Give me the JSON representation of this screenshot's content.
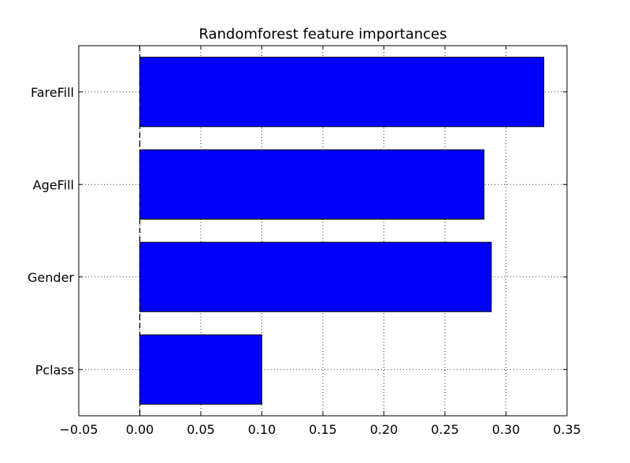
{
  "chart_data": {
    "type": "bar",
    "orientation": "horizontal",
    "title": "Randomforest feature importances",
    "xlabel": "",
    "ylabel": "",
    "categories": [
      "Pclass",
      "Gender",
      "AgeFill",
      "FareFill"
    ],
    "values": [
      0.1,
      0.288,
      0.282,
      0.331
    ],
    "xlim": [
      -0.05,
      0.35
    ],
    "xticks": [
      -0.05,
      0.0,
      0.05,
      0.1,
      0.15,
      0.2,
      0.25,
      0.3,
      0.35
    ],
    "xtick_labels": [
      "−0.05",
      "0.00",
      "0.05",
      "0.10",
      "0.15",
      "0.20",
      "0.25",
      "0.30",
      "0.35"
    ],
    "grid": true,
    "reference_line": {
      "x": 0.0,
      "style": "dashed"
    },
    "bar_color": "#0000ff",
    "bar_edge_color": "#000000"
  }
}
